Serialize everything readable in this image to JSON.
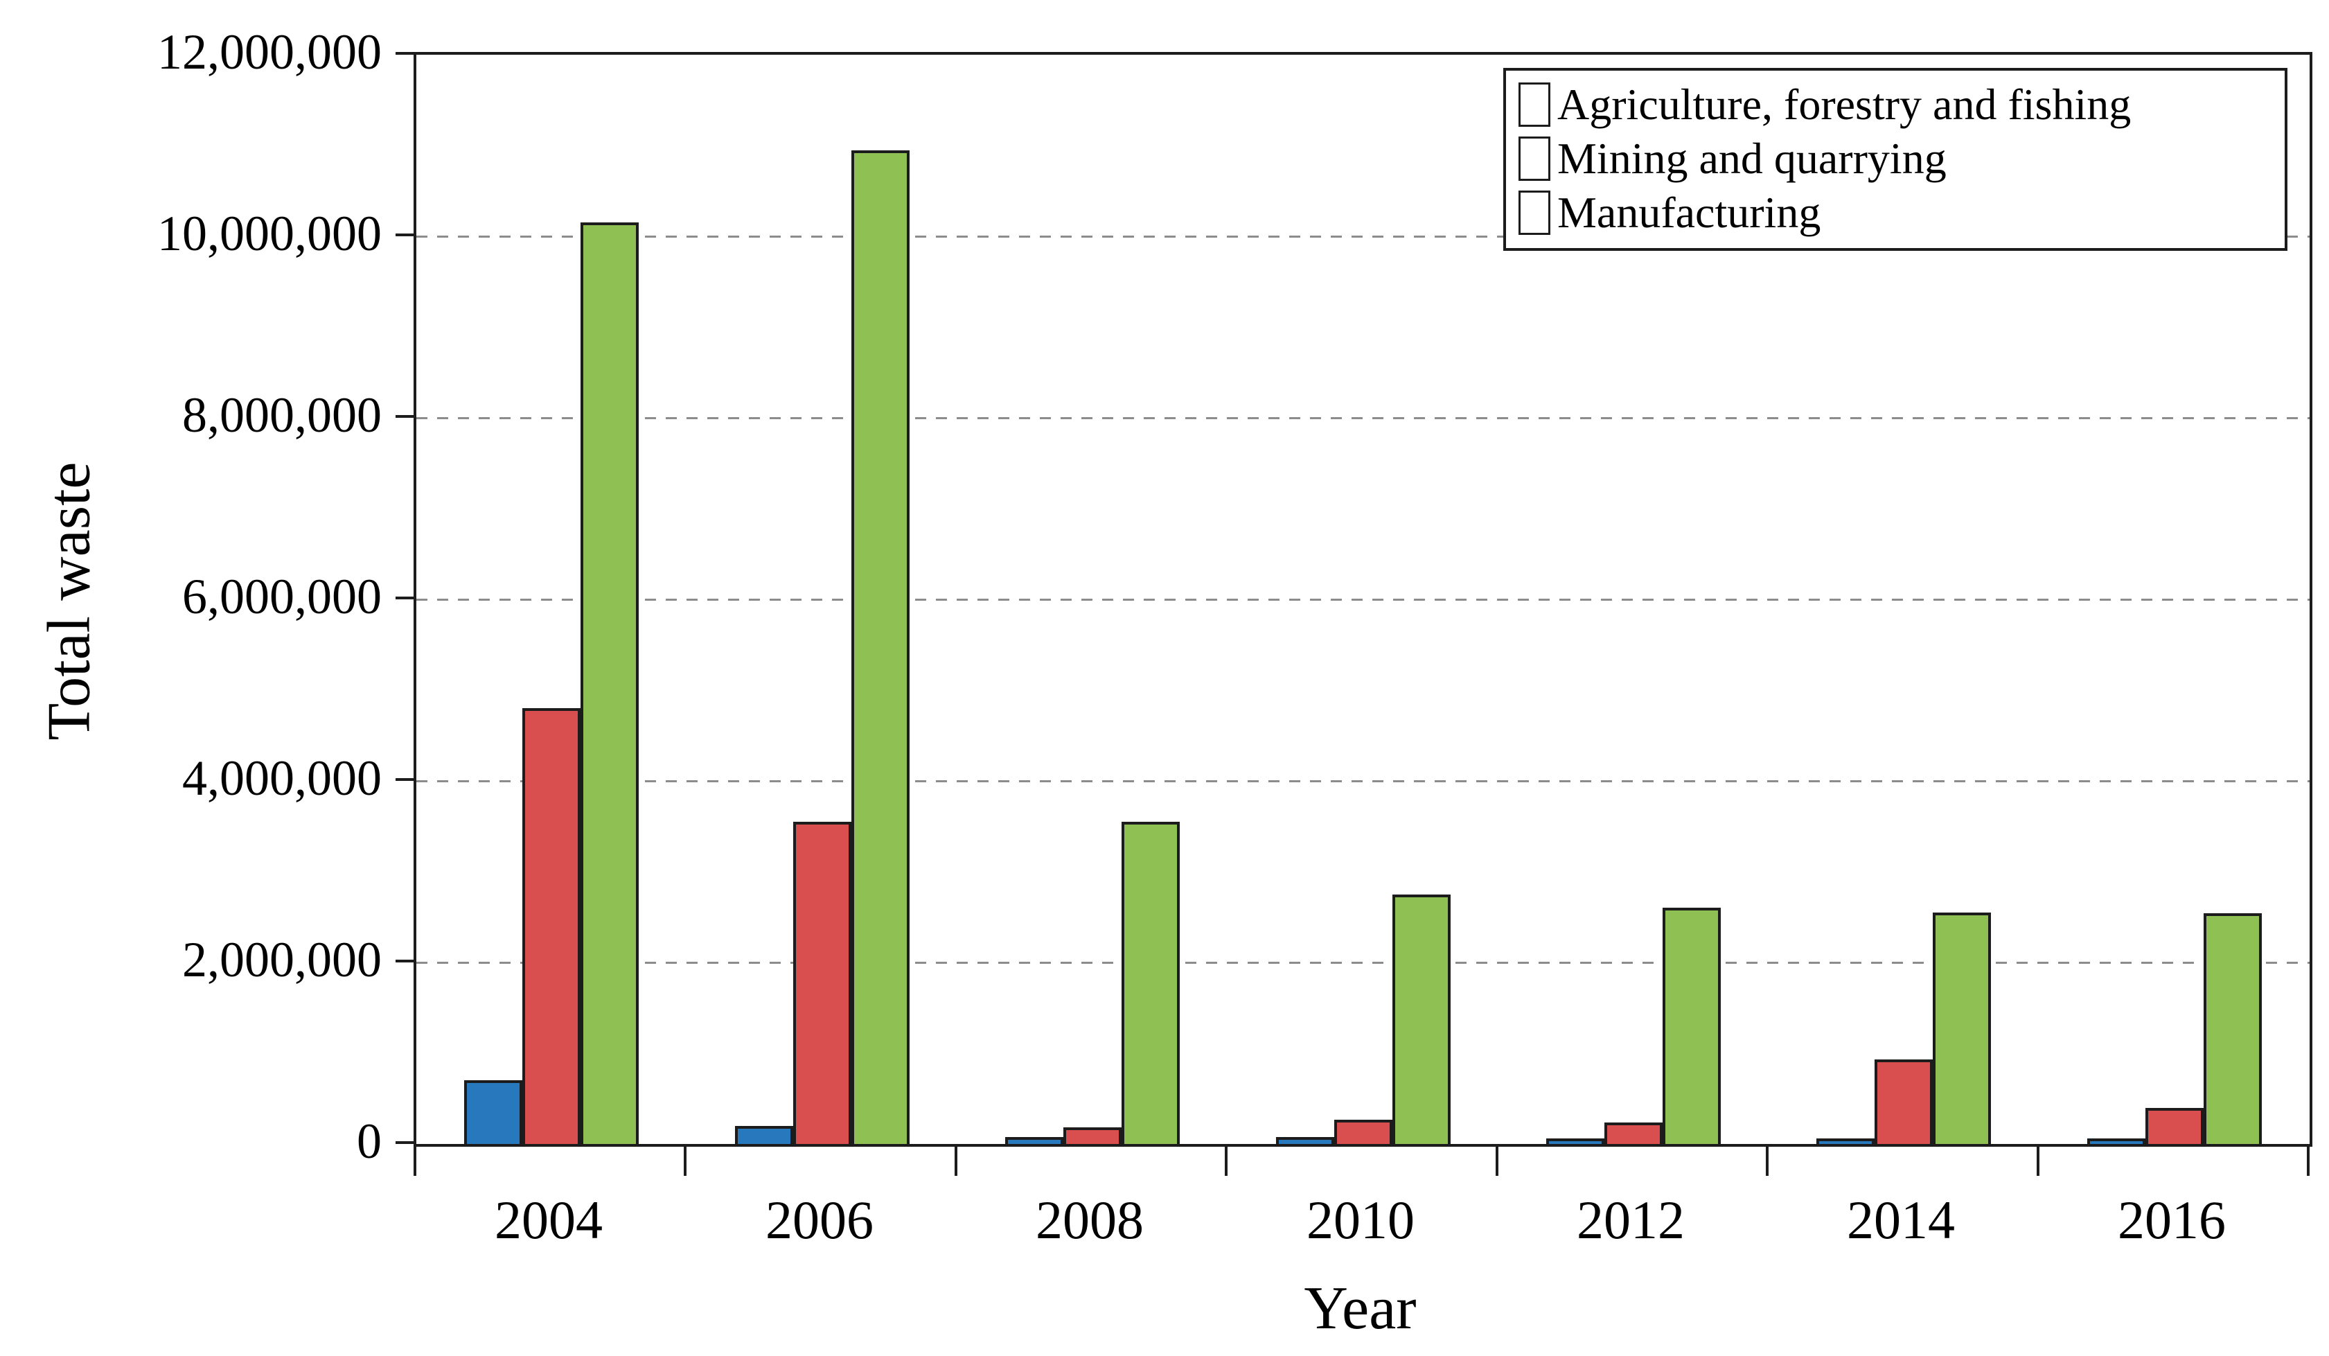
{
  "figure": {
    "background_color": "#ffffff",
    "axis_line_color": "#1c1c1c",
    "gridline_color": "#8c8c8c"
  },
  "y_axis": {
    "title": "Total waste",
    "min": 0,
    "max": 12000000,
    "tick_interval": 2000000,
    "tick_labels": [
      "0",
      "2,000,000",
      "4,000,000",
      "6,000,000",
      "8,000,000",
      "10,000,000",
      "12,000,000"
    ]
  },
  "x_axis": {
    "title": "Year",
    "tick_labels": [
      "2004",
      "2006",
      "2008",
      "2010",
      "2012",
      "2014",
      "2016"
    ]
  },
  "legend": {
    "position": "top-right",
    "entries": [
      {
        "label": "Agriculture, forestry and fishing",
        "color": "#2878BE"
      },
      {
        "label": "Mining and quarrying",
        "color": "#D94F4F"
      },
      {
        "label": "Manufacturing",
        "color": "#8FC054"
      }
    ]
  },
  "chart_data": {
    "type": "bar",
    "title": "",
    "xlabel": "Year",
    "ylabel": "Total waste",
    "ylim": [
      0,
      12000000
    ],
    "ytick_interval": 2000000,
    "grid": "horizontal-dashed",
    "legend_position": "top-right",
    "categories": [
      "2004",
      "2006",
      "2008",
      "2010",
      "2012",
      "2014",
      "2016"
    ],
    "series": [
      {
        "name": "Agriculture, forestry and fishing",
        "color": "#2878BE",
        "values": [
          700000,
          200000,
          80000,
          80000,
          60000,
          60000,
          60000
        ]
      },
      {
        "name": "Mining and quarrying",
        "color": "#D94F4F",
        "values": [
          4800000,
          3550000,
          180000,
          270000,
          240000,
          930000,
          400000
        ]
      },
      {
        "name": "Manufacturing",
        "color": "#8FC054",
        "values": [
          10150000,
          10950000,
          3550000,
          2750000,
          2600000,
          2550000,
          2540000
        ]
      }
    ]
  }
}
